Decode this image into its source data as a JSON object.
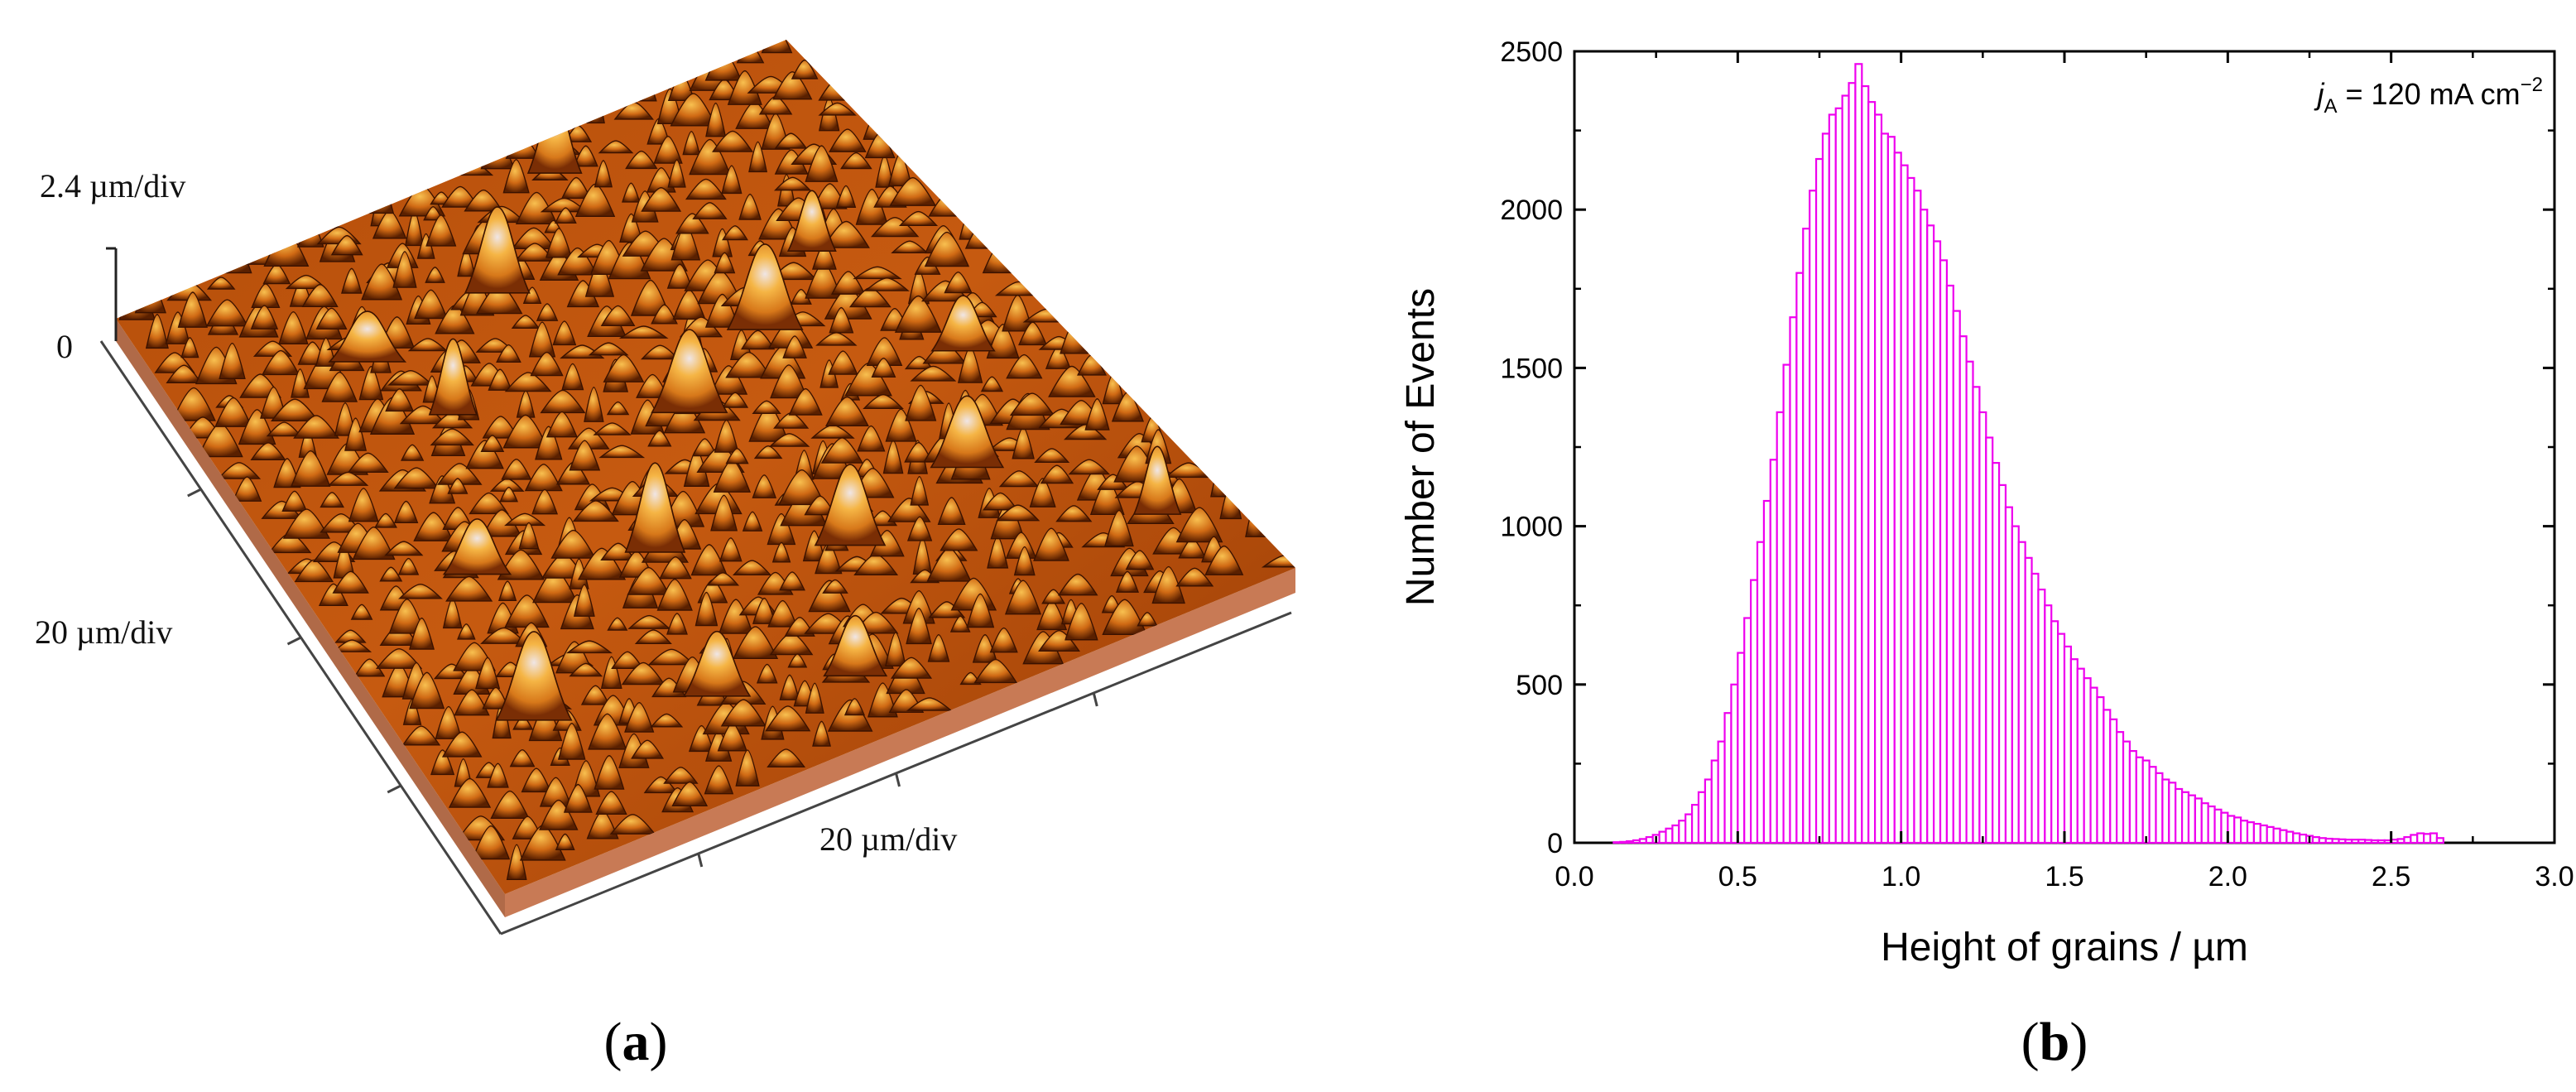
{
  "panel_a": {
    "label_prefix": "(",
    "label_letter": "a",
    "label_suffix": ")",
    "z_scale_label": "2.4 µm/div",
    "z_zero_label": "0",
    "y_scale_label": "20 µm/div",
    "x_scale_label": "20 µm/div",
    "colors": {
      "surface_dark": "#5a2000",
      "surface_mid": "#c65a10",
      "surface_light": "#f3a830",
      "peak_highlight": "#efe6e6",
      "base_side": "#c87a55"
    }
  },
  "panel_b": {
    "label_prefix": "(",
    "label_letter": "b",
    "label_suffix": ")"
  },
  "chart_data": {
    "type": "bar",
    "subtype": "histogram",
    "xlabel": "Height of grains / µm",
    "ylabel": "Number of Events",
    "xlim": [
      0.0,
      3.0
    ],
    "ylim": [
      0,
      2500
    ],
    "xticks": [
      "0.0",
      "0.5",
      "1.0",
      "1.5",
      "2.0",
      "2.5",
      "3.0"
    ],
    "yticks": [
      "0",
      "500",
      "1000",
      "1500",
      "2000",
      "2500"
    ],
    "annotation": {
      "symbol": "j",
      "subscript": "A",
      "text": " = 120 mA cm",
      "superscript": "−2"
    },
    "bar_color": "#ee00ee",
    "bin_width": 0.02,
    "bin_start": 0.0,
    "values": [
      0,
      0,
      0,
      0,
      0,
      0,
      2,
      3,
      5,
      8,
      12,
      18,
      25,
      35,
      45,
      55,
      70,
      90,
      120,
      160,
      200,
      260,
      320,
      410,
      500,
      600,
      710,
      830,
      950,
      1080,
      1210,
      1360,
      1510,
      1660,
      1800,
      1940,
      2060,
      2160,
      2240,
      2300,
      2320,
      2360,
      2400,
      2460,
      2390,
      2340,
      2300,
      2240,
      2230,
      2180,
      2140,
      2100,
      2060,
      2000,
      1950,
      1900,
      1840,
      1760,
      1680,
      1600,
      1520,
      1440,
      1360,
      1280,
      1200,
      1130,
      1060,
      1000,
      950,
      900,
      850,
      800,
      750,
      700,
      660,
      620,
      580,
      550,
      520,
      490,
      460,
      420,
      390,
      350,
      320,
      290,
      270,
      260,
      240,
      220,
      200,
      190,
      170,
      160,
      150,
      140,
      125,
      115,
      105,
      95,
      85,
      80,
      70,
      65,
      60,
      55,
      50,
      45,
      40,
      35,
      30,
      26,
      22,
      18,
      15,
      13,
      12,
      11,
      10,
      10,
      10,
      9,
      8,
      8,
      8,
      10,
      12,
      18,
      25,
      30,
      28,
      30,
      15,
      0
    ],
    "legend": "none"
  }
}
